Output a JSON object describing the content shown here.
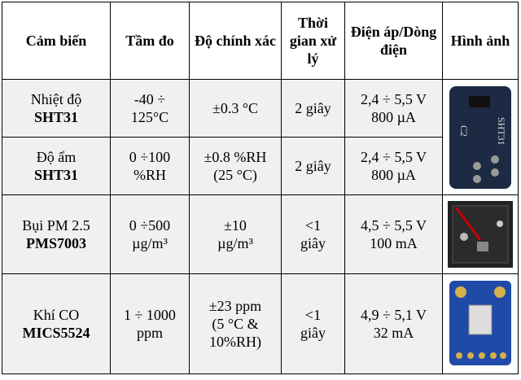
{
  "table": {
    "header": [
      "Cảm biến",
      "Tầm đo",
      "Độ chính xác",
      "Thời gian xử lý",
      "Điện áp/Dòng điện",
      "Hình ảnh"
    ],
    "rows": [
      [
        [
          "Nhiệt độ",
          "SHT31"
        ],
        [
          "-40 ÷",
          "125°C"
        ],
        [
          "±0.3 °C"
        ],
        [
          "2 giây"
        ],
        [
          "2,4 ÷ 5,5 V",
          "800 µA"
        ]
      ],
      [
        [
          "Độ ẩm",
          "SHT31"
        ],
        [
          "0 ÷100",
          "%RH"
        ],
        [
          "±0.8 %RH",
          "(25 °C)"
        ],
        [
          "2 giây"
        ],
        [
          "2,4 ÷ 5,5 V",
          "800 µA"
        ]
      ],
      [
        [
          "Bụi PM 2.5",
          "PMS7003"
        ],
        [
          "0 ÷500",
          "µg/m³"
        ],
        [
          "±10",
          "µg/m³"
        ],
        [
          "<1",
          "giây"
        ],
        [
          "4,5 ÷ 5,5 V",
          "100 mA"
        ]
      ],
      [
        [
          "Khí CO",
          "MICS5524"
        ],
        [
          "1 ÷ 1000",
          "ppm"
        ],
        [
          "±23 ppm",
          "(5 °C &",
          "10%RH)"
        ],
        [
          "<1",
          "giây"
        ],
        [
          "4,9 ÷ 5,1 V",
          "32 mA"
        ]
      ]
    ]
  }
}
